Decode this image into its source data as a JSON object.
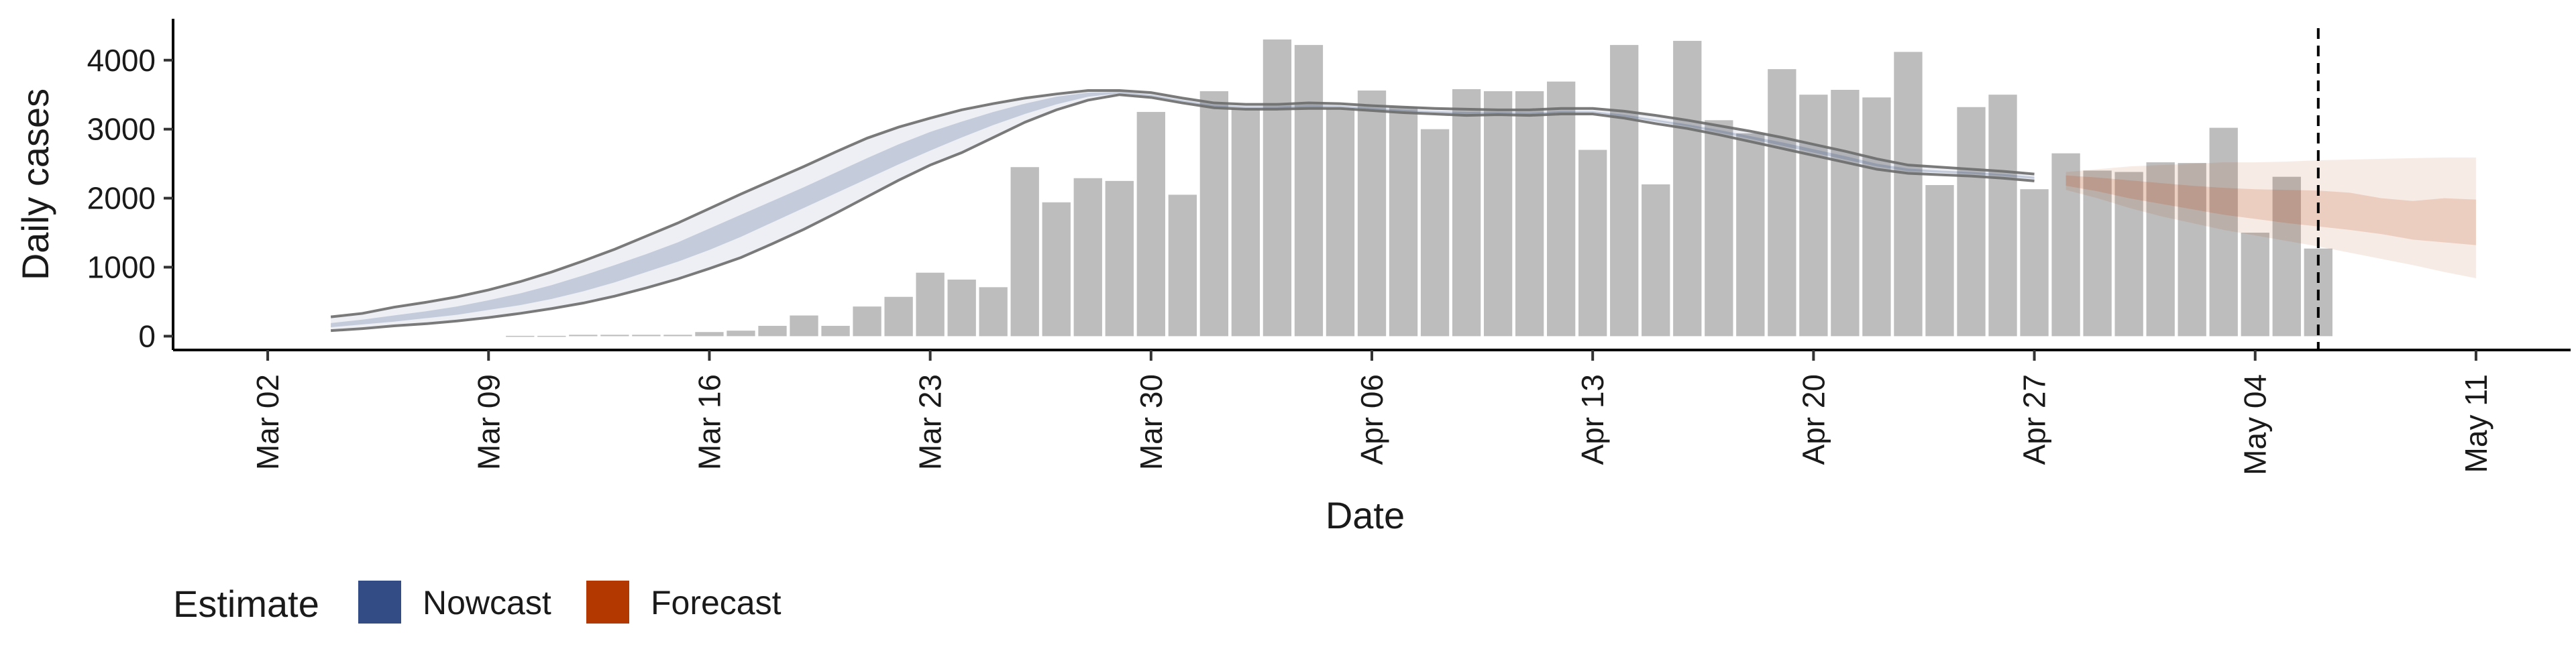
{
  "chart_data": {
    "type": "bar",
    "xlabel": "Date",
    "ylabel": "Daily cases",
    "xlim": [
      "2020-02-28",
      "2020-05-14"
    ],
    "ylim": [
      -200,
      4600
    ],
    "x_ticks": [
      "2020-03-02",
      "2020-03-09",
      "2020-03-16",
      "2020-03-23",
      "2020-03-30",
      "2020-04-06",
      "2020-04-13",
      "2020-04-20",
      "2020-04-27",
      "2020-05-04",
      "2020-05-11"
    ],
    "x_tick_labels": [
      "Mar 02",
      "Mar 09",
      "Mar 16",
      "Mar 23",
      "Mar 30",
      "Apr 06",
      "Apr 13",
      "Apr 20",
      "Apr 27",
      "May 04",
      "May 11"
    ],
    "y_ticks": [
      0,
      1000,
      2000,
      3000,
      4000
    ],
    "y_tick_labels": [
      "0",
      "1000",
      "2000",
      "3000",
      "4000"
    ],
    "grid": false,
    "reference_line": {
      "date": "2020-05-06",
      "style": "dashed"
    },
    "reported_cases": {
      "dates": [
        "2020-03-10",
        "2020-03-11",
        "2020-03-12",
        "2020-03-13",
        "2020-03-14",
        "2020-03-15",
        "2020-03-16",
        "2020-03-17",
        "2020-03-18",
        "2020-03-19",
        "2020-03-20",
        "2020-03-21",
        "2020-03-22",
        "2020-03-23",
        "2020-03-24",
        "2020-03-25",
        "2020-03-26",
        "2020-03-27",
        "2020-03-28",
        "2020-03-29",
        "2020-03-30",
        "2020-03-31",
        "2020-04-01",
        "2020-04-02",
        "2020-04-03",
        "2020-04-04",
        "2020-04-05",
        "2020-04-06",
        "2020-04-07",
        "2020-04-08",
        "2020-04-09",
        "2020-04-10",
        "2020-04-11",
        "2020-04-12",
        "2020-04-13",
        "2020-04-14",
        "2020-04-15",
        "2020-04-16",
        "2020-04-17",
        "2020-04-18",
        "2020-04-19",
        "2020-04-20",
        "2020-04-21",
        "2020-04-22",
        "2020-04-23",
        "2020-04-24",
        "2020-04-25",
        "2020-04-26",
        "2020-04-27",
        "2020-04-28",
        "2020-04-29",
        "2020-04-30",
        "2020-05-01",
        "2020-05-02",
        "2020-05-03",
        "2020-05-04",
        "2020-05-05",
        "2020-05-06"
      ],
      "values": [
        5,
        5,
        20,
        20,
        20,
        20,
        60,
        80,
        150,
        300,
        150,
        430,
        570,
        920,
        820,
        710,
        2450,
        1940,
        2290,
        2250,
        3250,
        2050,
        3550,
        3300,
        4300,
        4220,
        3300,
        3560,
        3320,
        3000,
        3580,
        3550,
        3550,
        3690,
        2700,
        4220,
        2200,
        4280,
        3130,
        2940,
        3870,
        3500,
        3570,
        3460,
        4120,
        2190,
        3320,
        3500,
        2130,
        2650,
        2400,
        2380,
        2520,
        2510,
        3020,
        1500,
        2310,
        1270
      ]
    },
    "series": [
      {
        "name": "Nowcast",
        "dates": [
          "2020-03-04",
          "2020-03-05",
          "2020-03-06",
          "2020-03-07",
          "2020-03-08",
          "2020-03-09",
          "2020-03-10",
          "2020-03-11",
          "2020-03-12",
          "2020-03-13",
          "2020-03-14",
          "2020-03-15",
          "2020-03-16",
          "2020-03-17",
          "2020-03-18",
          "2020-03-19",
          "2020-03-20",
          "2020-03-21",
          "2020-03-22",
          "2020-03-23",
          "2020-03-24",
          "2020-03-25",
          "2020-03-26",
          "2020-03-27",
          "2020-03-28",
          "2020-03-29",
          "2020-03-30",
          "2020-03-31",
          "2020-04-01",
          "2020-04-02",
          "2020-04-03",
          "2020-04-04",
          "2020-04-05",
          "2020-04-06",
          "2020-04-07",
          "2020-04-08",
          "2020-04-09",
          "2020-04-10",
          "2020-04-11",
          "2020-04-12",
          "2020-04-13",
          "2020-04-14",
          "2020-04-15",
          "2020-04-16",
          "2020-04-17",
          "2020-04-18",
          "2020-04-19",
          "2020-04-20",
          "2020-04-21",
          "2020-04-22",
          "2020-04-23",
          "2020-04-24",
          "2020-04-25",
          "2020-04-26",
          "2020-04-27"
        ],
        "upper": [
          280,
          330,
          420,
          490,
          570,
          670,
          790,
          930,
          1090,
          1260,
          1450,
          1640,
          1850,
          2060,
          2260,
          2460,
          2670,
          2870,
          3030,
          3160,
          3280,
          3370,
          3450,
          3510,
          3560,
          3560,
          3530,
          3450,
          3380,
          3360,
          3360,
          3380,
          3370,
          3340,
          3320,
          3300,
          3290,
          3280,
          3280,
          3300,
          3300,
          3260,
          3200,
          3130,
          3050,
          2970,
          2880,
          2780,
          2680,
          2570,
          2480,
          2450,
          2420,
          2390,
          2350
        ],
        "lower": [
          80,
          110,
          150,
          180,
          220,
          270,
          330,
          400,
          480,
          580,
          700,
          830,
          980,
          1140,
          1340,
          1550,
          1780,
          2020,
          2260,
          2480,
          2660,
          2880,
          3100,
          3280,
          3420,
          3500,
          3460,
          3380,
          3310,
          3290,
          3290,
          3300,
          3300,
          3270,
          3240,
          3220,
          3200,
          3210,
          3200,
          3220,
          3220,
          3160,
          3080,
          3010,
          2920,
          2820,
          2720,
          2620,
          2520,
          2420,
          2360,
          2340,
          2320,
          2290,
          2250
        ],
        "inner_upper": [
          190,
          240,
          300,
          360,
          430,
          520,
          620,
          740,
          880,
          1030,
          1190,
          1360,
          1560,
          1760,
          1960,
          2160,
          2370,
          2580,
          2780,
          2960,
          3110,
          3250,
          3370,
          3470,
          3530,
          3540,
          3500,
          3420,
          3350,
          3330,
          3330,
          3350,
          3340,
          3310,
          3280,
          3260,
          3250,
          3250,
          3240,
          3260,
          3260,
          3210,
          3140,
          3070,
          2990,
          2900,
          2810,
          2710,
          2610,
          2500,
          2430,
          2400,
          2380,
          2350,
          2310
        ],
        "inner_lower": [
          130,
          170,
          210,
          260,
          310,
          380,
          450,
          540,
          650,
          780,
          930,
          1080,
          1250,
          1440,
          1650,
          1860,
          2070,
          2280,
          2490,
          2690,
          2880,
          3060,
          3220,
          3360,
          3470,
          3520,
          3480,
          3400,
          3330,
          3310,
          3310,
          3320,
          3320,
          3290,
          3260,
          3240,
          3220,
          3230,
          3220,
          3240,
          3240,
          3180,
          3110,
          3040,
          2950,
          2860,
          2760,
          2660,
          2560,
          2460,
          2390,
          2370,
          2350,
          2320,
          2280
        ]
      },
      {
        "name": "Forecast",
        "dates": [
          "2020-04-28",
          "2020-04-29",
          "2020-04-30",
          "2020-05-01",
          "2020-05-02",
          "2020-05-03",
          "2020-05-04",
          "2020-05-05",
          "2020-05-06",
          "2020-05-07",
          "2020-05-08",
          "2020-05-09",
          "2020-05-10",
          "2020-05-11"
        ],
        "upper": [
          2380,
          2420,
          2460,
          2480,
          2500,
          2520,
          2520,
          2530,
          2550,
          2560,
          2570,
          2580,
          2590,
          2590
        ],
        "lower": [
          2120,
          2000,
          1860,
          1740,
          1640,
          1540,
          1460,
          1380,
          1300,
          1210,
          1120,
          1030,
          930,
          840
        ],
        "inner_upper": [
          2330,
          2300,
          2260,
          2220,
          2180,
          2150,
          2130,
          2120,
          2110,
          2080,
          2000,
          1960,
          2000,
          1980
        ],
        "inner_lower": [
          2180,
          2100,
          2000,
          1920,
          1840,
          1760,
          1700,
          1640,
          1590,
          1540,
          1480,
          1400,
          1360,
          1320
        ]
      }
    ],
    "legend": {
      "title": "Estimate",
      "position": "bottom-left",
      "items": [
        {
          "name": "Nowcast",
          "color": "#344c85"
        },
        {
          "name": "Forecast",
          "color": "#b33800"
        }
      ]
    },
    "colors": {
      "bars": "#bdbdbd",
      "nowcast_band": "#344c85",
      "forecast_band": "#b33800",
      "outline": "#6b6b6b"
    }
  }
}
